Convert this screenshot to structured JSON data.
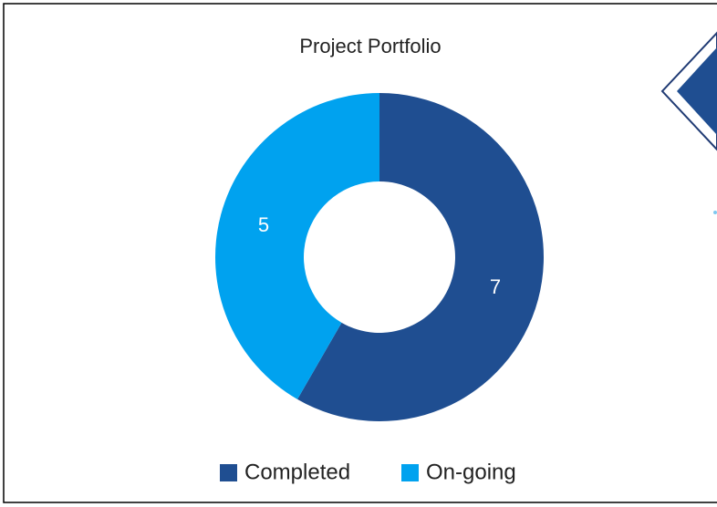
{
  "chart_data": {
    "type": "donut",
    "title": "Project Portfolio",
    "categories": [
      "Completed",
      "On-going"
    ],
    "values": [
      7,
      5
    ],
    "colors": [
      "#1f4e91",
      "#00a2ef"
    ],
    "legend": "bottom"
  }
}
